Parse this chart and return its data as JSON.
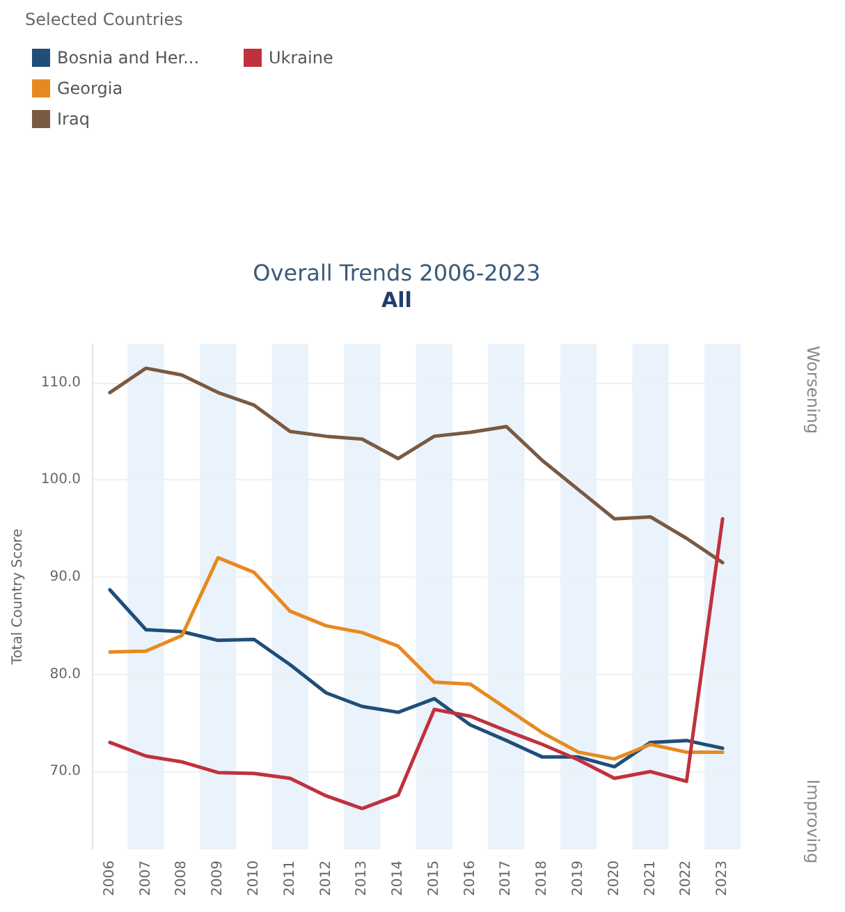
{
  "chart_data": {
    "type": "line",
    "title": "Overall Trends 2006-2023",
    "subtitle": "All",
    "ylabel": "Total Country Score",
    "legend_title": "Selected Countries",
    "legend": "top left",
    "grid": "y",
    "marker": "none",
    "line_style": "solid",
    "categories": [
      "2006",
      "2007",
      "2008",
      "2009",
      "2010",
      "2011",
      "2012",
      "2013",
      "2014",
      "2015",
      "2016",
      "2017",
      "2018",
      "2019",
      "2020",
      "2021",
      "2022",
      "2023"
    ],
    "ylim": [
      62,
      114
    ],
    "yticks": [
      {
        "value": 70,
        "label": "70.0"
      },
      {
        "value": 80,
        "label": "80.0"
      },
      {
        "value": 90,
        "label": "90.0"
      },
      {
        "value": 100,
        "label": "100.0"
      },
      {
        "value": 110,
        "label": "110.0"
      }
    ],
    "series": [
      {
        "name": "Bosnia and Her...",
        "color": "#1f4e79",
        "values": [
          88.7,
          84.6,
          84.4,
          83.5,
          83.6,
          81,
          78.1,
          76.7,
          76.1,
          77.5,
          74.8,
          73.2,
          71.5,
          71.5,
          70.5,
          73,
          73.2,
          72.4
        ]
      },
      {
        "name": "Georgia",
        "color": "#e8891f",
        "values": [
          82.3,
          82.4,
          84,
          92,
          90.5,
          86.5,
          85,
          84.3,
          82.9,
          79.2,
          79,
          76.5,
          74,
          72,
          71.3,
          72.8,
          72,
          72
        ]
      },
      {
        "name": "Iraq",
        "color": "#7a5a42",
        "values": [
          109,
          111.5,
          110.8,
          109,
          107.7,
          105,
          104.5,
          104.2,
          102.2,
          104.5,
          104.9,
          105.5,
          102,
          99,
          96,
          96.2,
          94,
          91.5
        ]
      },
      {
        "name": "Ukraine",
        "color": "#c0313d",
        "values": [
          73,
          71.6,
          71,
          69.9,
          69.8,
          69.3,
          67.5,
          66.2,
          67.6,
          76.4,
          75.7,
          74.2,
          72.8,
          71.2,
          69.3,
          70,
          69,
          96
        ]
      }
    ],
    "bands": [
      {
        "axis": "x",
        "from": "2007",
        "to": "2007",
        "color": "#eaf3fb"
      },
      {
        "axis": "x",
        "from": "2009",
        "to": "2009",
        "color": "#eaf3fb"
      },
      {
        "axis": "x",
        "from": "2011",
        "to": "2011",
        "color": "#eaf3fb"
      },
      {
        "axis": "x",
        "from": "2013",
        "to": "2013",
        "color": "#eaf3fb"
      },
      {
        "axis": "x",
        "from": "2015",
        "to": "2015",
        "color": "#eaf3fb"
      },
      {
        "axis": "x",
        "from": "2017",
        "to": "2017",
        "color": "#eaf3fb"
      },
      {
        "axis": "x",
        "from": "2019",
        "to": "2019",
        "color": "#eaf3fb"
      },
      {
        "axis": "x",
        "from": "2021",
        "to": "2021",
        "color": "#eaf3fb"
      },
      {
        "axis": "x",
        "from": "2023",
        "to": "2023",
        "color": "#eaf3fb"
      }
    ],
    "annotations": [
      "Worsening",
      "Improving"
    ]
  }
}
